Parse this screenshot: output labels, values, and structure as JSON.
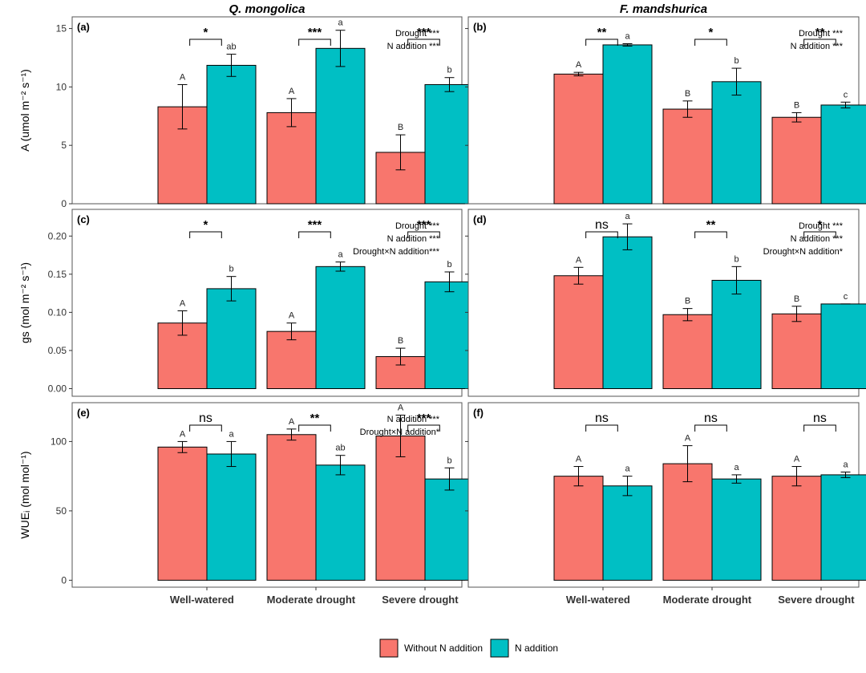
{
  "columns": [
    "Q. mongolica",
    "F. mandshurica"
  ],
  "categories": [
    "Well-watered",
    "Moderate drought",
    "Severe drought"
  ],
  "legend": [
    {
      "label": "Without N addition",
      "color": "#F8766D"
    },
    {
      "label": "N addition",
      "color": "#00BFC4"
    }
  ],
  "chart_data": [
    {
      "type": "bar",
      "panel": "(a)",
      "column": "Q. mongolica",
      "ylim": [
        0,
        16
      ],
      "yticks": [
        "0",
        "5",
        "10",
        "15"
      ],
      "ytick_values": [
        0,
        5,
        10,
        15
      ],
      "ylabel": "A (umol m⁻² s⁻¹)",
      "series": [
        {
          "name": "Without N addition",
          "values": [
            8.3,
            7.8,
            4.4
          ],
          "errors": [
            1.9,
            1.2,
            1.5
          ],
          "letters": [
            "A",
            "A",
            "B"
          ]
        },
        {
          "name": "N addition",
          "values": [
            11.85,
            13.3,
            10.2
          ],
          "errors": [
            0.95,
            1.55,
            0.6
          ],
          "letters": [
            "ab",
            "a",
            "b"
          ]
        }
      ],
      "significance": [
        "*",
        "***",
        "***"
      ],
      "stats": [
        "Drought ***",
        "N addition ***"
      ]
    },
    {
      "type": "bar",
      "panel": "(b)",
      "column": "F. mandshurica",
      "ylim": [
        0,
        16
      ],
      "yticks": [],
      "ytick_values": [
        0,
        5,
        10,
        15
      ],
      "ylabel": "",
      "series": [
        {
          "name": "Without N addition",
          "values": [
            11.1,
            8.1,
            7.4
          ],
          "errors": [
            0.15,
            0.7,
            0.4
          ],
          "letters": [
            "A",
            "B",
            "B"
          ]
        },
        {
          "name": "N addition",
          "values": [
            13.6,
            10.45,
            8.45
          ],
          "errors": [
            0.1,
            1.15,
            0.25
          ],
          "letters": [
            "a",
            "b",
            "c"
          ]
        }
      ],
      "significance": [
        "**",
        "*",
        "**"
      ],
      "stats": [
        "Drought ***",
        "N addition ***"
      ]
    },
    {
      "type": "bar",
      "panel": "(c)",
      "column": "Q. mongolica",
      "ylim": [
        -0.01,
        0.235
      ],
      "yticks": [
        "0.00",
        "0.05",
        "0.10",
        "0.15",
        "0.20"
      ],
      "ytick_values": [
        0,
        0.05,
        0.1,
        0.15,
        0.2
      ],
      "ylabel": "gs (mol m⁻² s⁻¹)",
      "series": [
        {
          "name": "Without N addition",
          "values": [
            0.086,
            0.075,
            0.042
          ],
          "errors": [
            0.016,
            0.011,
            0.011
          ],
          "letters": [
            "A",
            "A",
            "B"
          ]
        },
        {
          "name": "N addition",
          "values": [
            0.131,
            0.16,
            0.14
          ],
          "errors": [
            0.016,
            0.006,
            0.013
          ],
          "letters": [
            "b",
            "a",
            "b"
          ]
        }
      ],
      "significance": [
        "*",
        "***",
        "***"
      ],
      "stats": [
        "Drought ***",
        "N addition ***",
        "Drought×N addition***"
      ]
    },
    {
      "type": "bar",
      "panel": "(d)",
      "column": "F. mandshurica",
      "ylim": [
        -0.01,
        0.235
      ],
      "yticks": [],
      "ytick_values": [
        0,
        0.05,
        0.1,
        0.15,
        0.2
      ],
      "ylabel": "",
      "series": [
        {
          "name": "Without N addition",
          "values": [
            0.148,
            0.097,
            0.098
          ],
          "errors": [
            0.011,
            0.008,
            0.01
          ],
          "letters": [
            "A",
            "B",
            "B"
          ]
        },
        {
          "name": "N addition",
          "values": [
            0.199,
            0.142,
            0.111
          ],
          "errors": [
            0.017,
            0.018,
            0.0
          ],
          "letters": [
            "a",
            "b",
            "c"
          ]
        }
      ],
      "significance": [
        "ns",
        "**",
        "*"
      ],
      "stats": [
        "Drought ***",
        "N addition ***",
        "Drought×N addition*"
      ]
    },
    {
      "type": "bar",
      "panel": "(e)",
      "column": "Q. mongolica",
      "ylim": [
        -5,
        128
      ],
      "yticks": [
        "0",
        "50",
        "100"
      ],
      "ytick_values": [
        0,
        50,
        100
      ],
      "ylabel": "WUEᵢ (mol mol⁻¹)",
      "series": [
        {
          "name": "Without N addition",
          "values": [
            96,
            105,
            104
          ],
          "errors": [
            4,
            4,
            15
          ],
          "letters": [
            "A",
            "A",
            "A"
          ]
        },
        {
          "name": "N addition",
          "values": [
            91,
            83,
            73
          ],
          "errors": [
            9,
            7,
            8
          ],
          "letters": [
            "a",
            "ab",
            "b"
          ]
        }
      ],
      "significance": [
        "ns",
        "**",
        "***"
      ],
      "stats": [
        "N addition ***",
        "Drought×N addition*"
      ]
    },
    {
      "type": "bar",
      "panel": "(f)",
      "column": "F. mandshurica",
      "ylim": [
        -5,
        128
      ],
      "yticks": [],
      "ytick_values": [
        0,
        50,
        100
      ],
      "ylabel": "",
      "series": [
        {
          "name": "Without N addition",
          "values": [
            75,
            84,
            75
          ],
          "errors": [
            7,
            13,
            7
          ],
          "letters": [
            "A",
            "A",
            "A"
          ]
        },
        {
          "name": "N addition",
          "values": [
            68,
            73,
            76
          ],
          "errors": [
            7,
            3,
            2
          ],
          "letters": [
            "a",
            "a",
            "a"
          ]
        }
      ],
      "significance": [
        "ns",
        "ns",
        "ns"
      ],
      "stats": []
    }
  ]
}
